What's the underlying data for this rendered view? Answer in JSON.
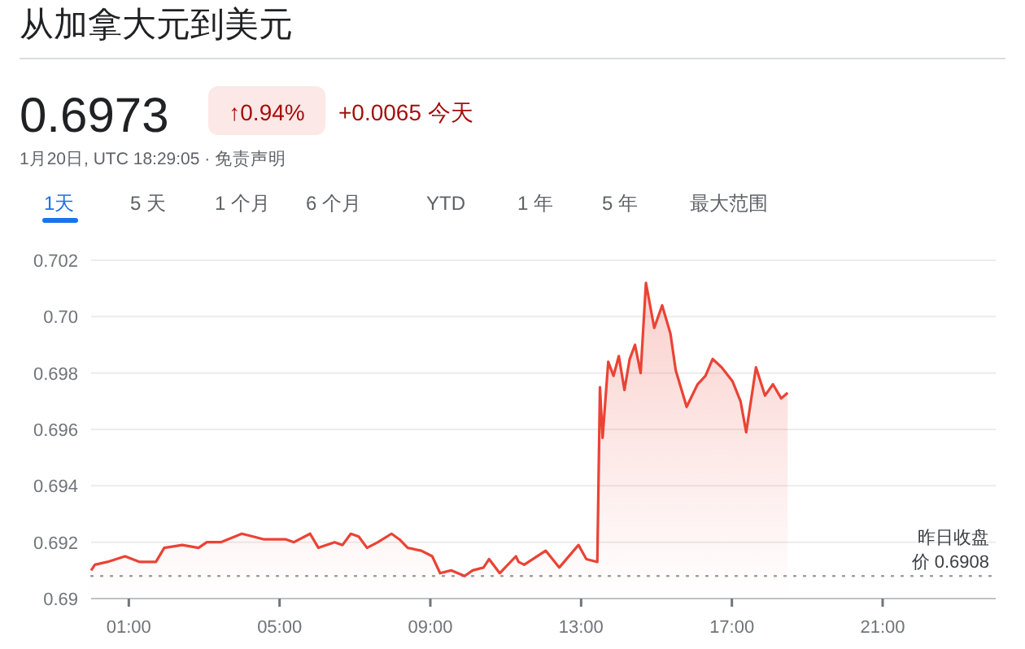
{
  "chart_data": {
    "type": "area",
    "title": "从加拿大元到美元",
    "annotations": [
      "0.6973",
      "↑0.94%",
      "+0.0065 今天",
      "1月20日, UTC 18:29:05 · 免责声明",
      "1天",
      "5 天",
      "1 个月",
      "6 个月",
      "YTD",
      "1 年",
      "5 年",
      "最大范围"
    ],
    "x": [
      0,
      0.1,
      0.43,
      0.9,
      1.29,
      1.72,
      1.94,
      2.42,
      2.85,
      3.07,
      3.44,
      4.0,
      4.3,
      4.59,
      5.17,
      5.38,
      5.81,
      6.03,
      6.46,
      6.67,
      6.89,
      7.1,
      7.32,
      7.61,
      7.97,
      8.18,
      8.4,
      8.76,
      9.05,
      9.26,
      9.55,
      9.91,
      10.12,
      10.41,
      10.56,
      10.84,
      11.27,
      11.34,
      11.49,
      12.06,
      12.42,
      12.93,
      13.14,
      13.43,
      13.5,
      13.57,
      13.72,
      13.86,
      14.0,
      14.15,
      14.29,
      14.43,
      14.58,
      14.72,
      14.94,
      15.15,
      15.37,
      15.51,
      15.8,
      16.09,
      16.3,
      16.49,
      16.73,
      17.02,
      17.23,
      17.38,
      17.64,
      17.88,
      18.09,
      18.31,
      18.48
    ],
    "series": [
      {
        "color": "#ea4335",
        "values": [
          0.691,
          0.6912,
          0.6913,
          0.6915,
          0.6913,
          0.6913,
          0.6918,
          0.6919,
          0.6918,
          0.692,
          0.692,
          0.6923,
          0.6922,
          0.6921,
          0.6921,
          0.692,
          0.6923,
          0.6918,
          0.692,
          0.6919,
          0.6923,
          0.6922,
          0.6918,
          0.692,
          0.6923,
          0.6921,
          0.6918,
          0.6917,
          0.6915,
          0.6909,
          0.691,
          0.6908,
          0.691,
          0.6911,
          0.6914,
          0.6909,
          0.6915,
          0.6913,
          0.6912,
          0.6917,
          0.6911,
          0.6919,
          0.6914,
          0.6913,
          0.6975,
          0.6957,
          0.6984,
          0.6979,
          0.6986,
          0.6974,
          0.6985,
          0.699,
          0.698,
          0.7012,
          0.6996,
          0.7004,
          0.6994,
          0.6981,
          0.6968,
          0.6976,
          0.6979,
          0.6985,
          0.6982,
          0.6977,
          0.697,
          0.6959,
          0.6982,
          0.6972,
          0.6976,
          0.6971,
          0.6973
        ]
      }
    ],
    "xlim": [
      0,
      24
    ],
    "xticks": [
      {
        "value": 1,
        "label": "01:00"
      },
      {
        "value": 5,
        "label": "05:00"
      },
      {
        "value": 9,
        "label": "09:00"
      },
      {
        "value": 13,
        "label": "13:00"
      },
      {
        "value": 17,
        "label": "17:00"
      },
      {
        "value": 21,
        "label": "21:00"
      }
    ],
    "ylim": [
      0.69,
      0.702
    ],
    "yticks": [
      {
        "value": 0.69,
        "label": "0.69"
      },
      0.692,
      0.694,
      0.696,
      0.698,
      {
        "value": 0.7,
        "label": "0.70"
      },
      0.702
    ],
    "grid": "y",
    "ref_lines": [
      {
        "axis": "y",
        "value": 0.6908,
        "label": "昨日收盘价 0.6908",
        "color": "#9aa0a6",
        "line_style": "dotted"
      }
    ]
  }
}
